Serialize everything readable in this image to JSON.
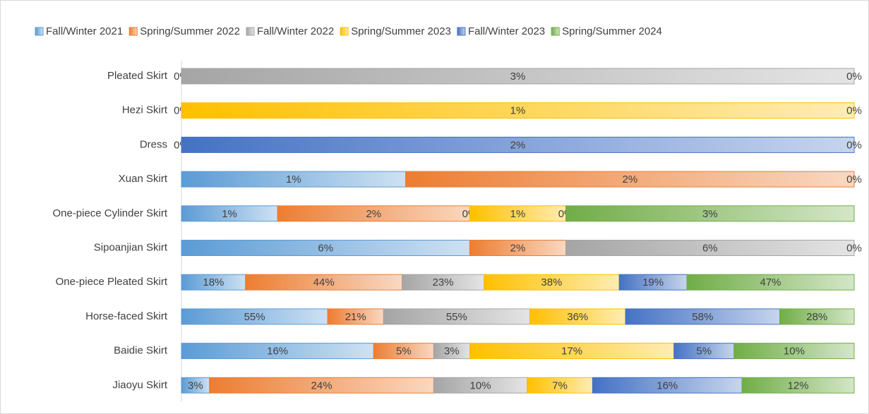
{
  "chart_data": {
    "type": "stacked100",
    "orientation": "horizontal",
    "legend": "top",
    "categories": [
      "Pleated Skirt",
      "Hezi Skirt",
      "Dress",
      "Xuan Skirt",
      "One-piece Cylinder Skirt",
      "Sipoanjian Skirt",
      "One-piece Pleated Skirt",
      "Horse-faced  Skirt",
      "Baidie Skirt",
      "Jiaoyu Skirt"
    ],
    "series": [
      {
        "name": "Fall/Winter 2021",
        "color": "#5b9bd5",
        "values": [
          0,
          0,
          0,
          1,
          1,
          6,
          18,
          55,
          16,
          3
        ],
        "value_labels": [
          "0%",
          "0%",
          "0%",
          "1%",
          "1%",
          "6%",
          "18%",
          "55%",
          "16%",
          "3%"
        ]
      },
      {
        "name": "Spring/Summer 2022",
        "color": "#ed7d31",
        "values": [
          null,
          null,
          null,
          2,
          2,
          2,
          44,
          21,
          5,
          24
        ],
        "value_labels": [
          null,
          null,
          null,
          "2%",
          "2%",
          "2%",
          "44%",
          "21%",
          "5%",
          "24%"
        ]
      },
      {
        "name": "Fall/Winter 2022",
        "color": "#a5a5a5",
        "values": [
          3,
          null,
          null,
          null,
          0,
          6,
          23,
          55,
          3,
          10
        ],
        "value_labels": [
          "3%",
          null,
          null,
          null,
          "0%",
          "6%",
          "23%",
          "55%",
          "3%",
          "10%"
        ]
      },
      {
        "name": "Spring/Summer 2023",
        "color": "#ffc000",
        "values": [
          null,
          1,
          null,
          null,
          1,
          null,
          38,
          36,
          17,
          7
        ],
        "value_labels": [
          null,
          "1%",
          null,
          null,
          "1%",
          null,
          "38%",
          "36%",
          "17%",
          "7%"
        ]
      },
      {
        "name": "Fall/Winter 2023",
        "color": "#4472c4",
        "values": [
          null,
          null,
          2,
          null,
          0,
          null,
          19,
          58,
          5,
          16
        ],
        "value_labels": [
          null,
          null,
          "2%",
          null,
          "0%",
          null,
          "19%",
          "58%",
          "5%",
          "16%"
        ]
      },
      {
        "name": "Spring/Summer 2024",
        "color": "#70ad47",
        "values": [
          0,
          0,
          0,
          0,
          3,
          0,
          47,
          28,
          10,
          12
        ],
        "value_labels": [
          "0%",
          "0%",
          "0%",
          "0%",
          "3%",
          "0%",
          "47%",
          "28%",
          "10%",
          "12%"
        ]
      }
    ]
  }
}
